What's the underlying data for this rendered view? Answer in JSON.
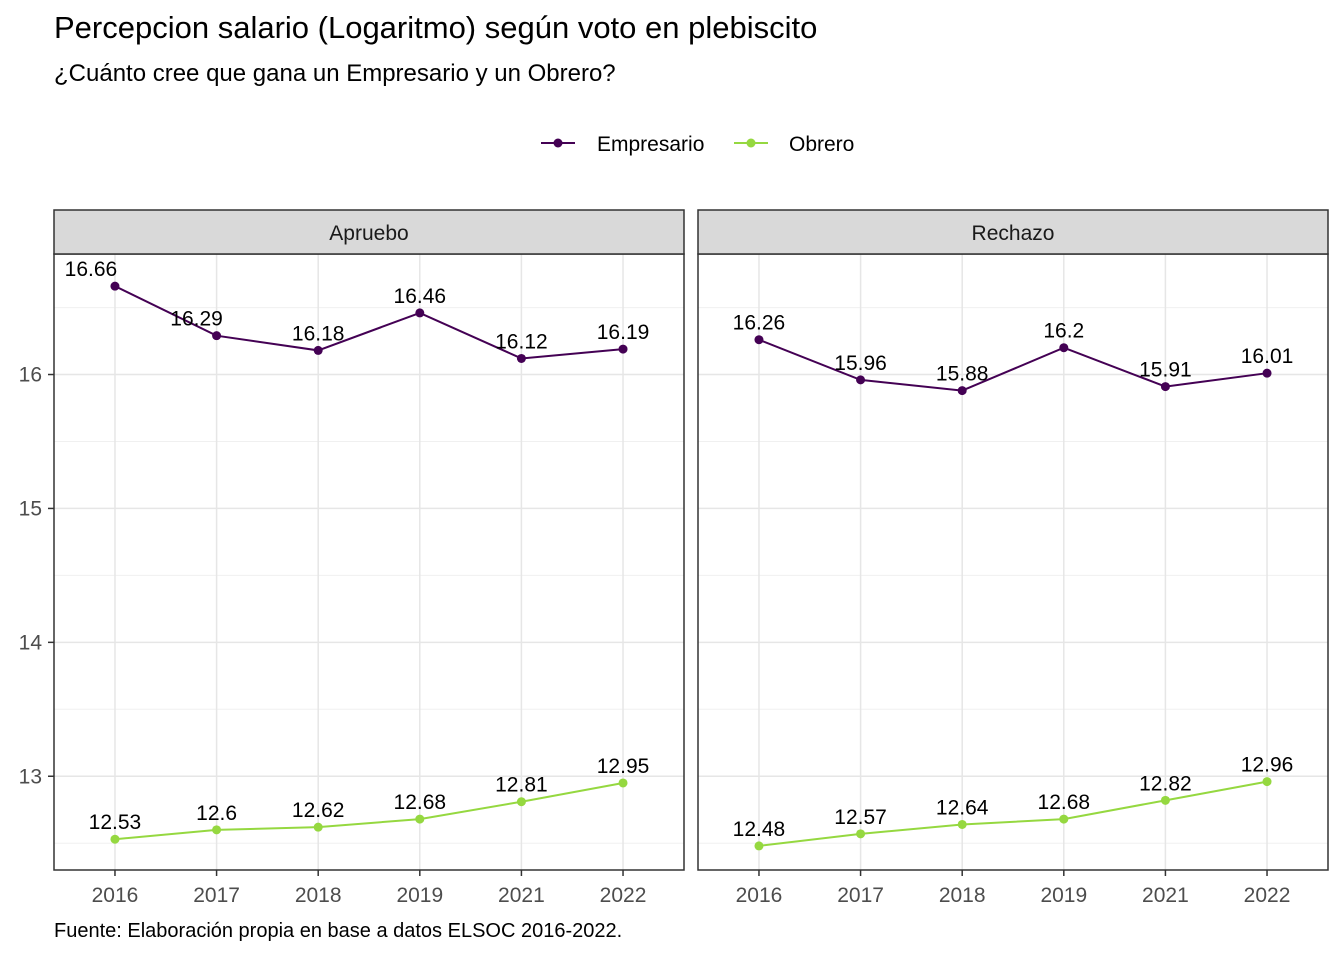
{
  "chart_data": {
    "type": "line",
    "title": "Percepcion salario (Logaritmo) según voto en plebiscito",
    "subtitle": "¿Cuánto cree que gana un Empresario y un Obrero?",
    "caption": "Fuente: Elaboración propia en base a datos ELSOC 2016-2022.",
    "x": [
      "2016",
      "2017",
      "2018",
      "2019",
      "2021",
      "2022"
    ],
    "ylim": [
      12.3,
      16.9
    ],
    "yticks": [
      13,
      14,
      15,
      16
    ],
    "grid": true,
    "legend_position": "top",
    "legend": [
      {
        "name": "Empresario",
        "color": "#440154"
      },
      {
        "name": "Obrero",
        "color": "#95d840"
      }
    ],
    "panels": [
      {
        "name": "Apruebo",
        "series": [
          {
            "name": "Empresario",
            "color": "#440154",
            "values": [
              16.66,
              16.29,
              16.18,
              16.46,
              16.12,
              16.19
            ],
            "labels": [
              "16.66",
              "16.29",
              "16.18",
              "16.46",
              "16.12",
              "16.19"
            ]
          },
          {
            "name": "Obrero",
            "color": "#95d840",
            "values": [
              12.53,
              12.6,
              12.62,
              12.68,
              12.81,
              12.95
            ],
            "labels": [
              "12.53",
              "12.6",
              "12.62",
              "12.68",
              "12.81",
              "12.95"
            ]
          }
        ]
      },
      {
        "name": "Rechazo",
        "series": [
          {
            "name": "Empresario",
            "color": "#440154",
            "values": [
              16.26,
              15.96,
              15.88,
              16.2,
              15.91,
              16.01
            ],
            "labels": [
              "16.26",
              "15.96",
              "15.88",
              "16.2",
              "15.91",
              "16.01"
            ]
          },
          {
            "name": "Obrero",
            "color": "#95d840",
            "values": [
              12.48,
              12.57,
              12.64,
              12.68,
              12.82,
              12.96
            ],
            "labels": [
              "12.48",
              "12.57",
              "12.64",
              "12.68",
              "12.82",
              "12.96"
            ]
          }
        ]
      }
    ]
  }
}
